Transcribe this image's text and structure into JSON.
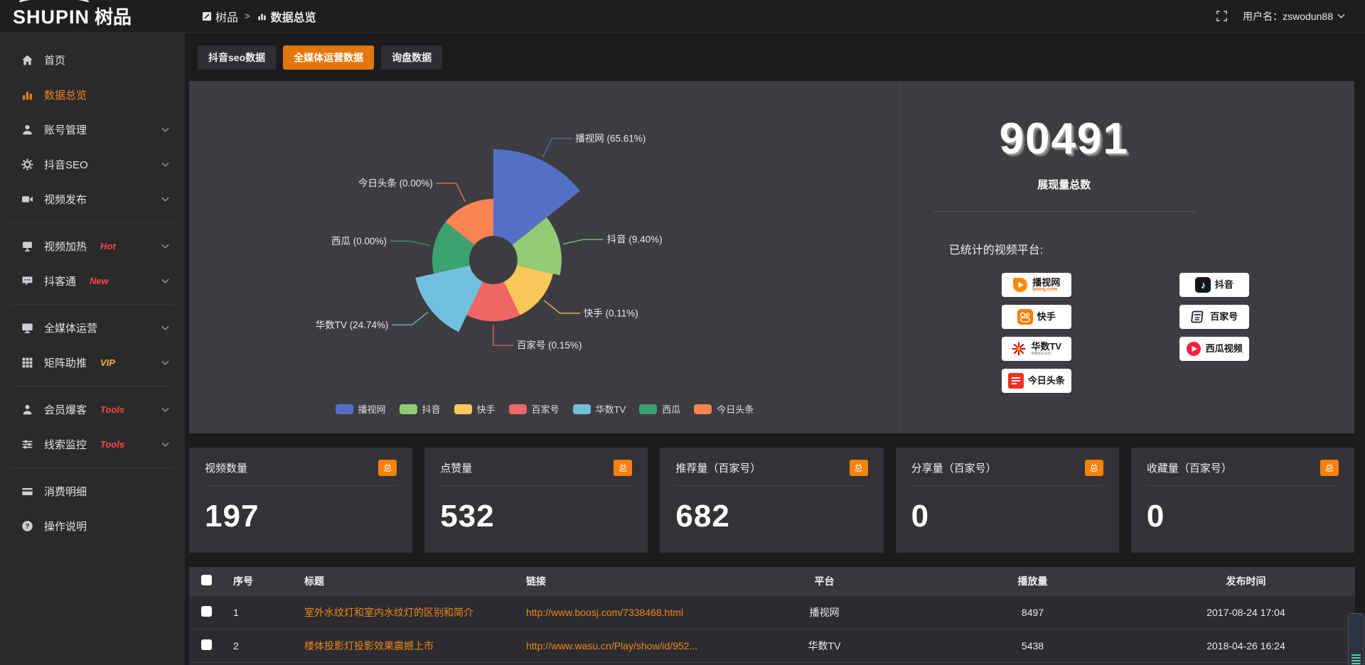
{
  "header": {
    "logo_primary": "SHUPIN",
    "logo_secondary": "树品",
    "breadcrumb": [
      {
        "label": "树品"
      },
      {
        "label": "数据总览"
      }
    ],
    "breadcrumb_separator": ">",
    "user_label": "用户名：zswodun88"
  },
  "sidebar": {
    "items": [
      {
        "label": "首页",
        "icon": "home-icon",
        "active": false,
        "chevron": false,
        "badge": "",
        "badge_color": "",
        "divider_after": false
      },
      {
        "label": "数据总览",
        "icon": "bar-chart-icon",
        "active": true,
        "chevron": false,
        "badge": "",
        "badge_color": "",
        "divider_after": false
      },
      {
        "label": "账号管理",
        "icon": "user-icon",
        "active": false,
        "chevron": true,
        "badge": "",
        "badge_color": "",
        "divider_after": false
      },
      {
        "label": "抖音SEO",
        "icon": "gear-icon",
        "active": false,
        "chevron": true,
        "badge": "",
        "badge_color": "",
        "divider_after": false
      },
      {
        "label": "视频发布",
        "icon": "video-camera-icon",
        "active": false,
        "chevron": true,
        "badge": "",
        "badge_color": "",
        "divider_after": true
      },
      {
        "label": "视频加热",
        "icon": "screen-icon",
        "active": false,
        "chevron": true,
        "badge": "Hot",
        "badge_color": "#ff4242",
        "divider_after": false
      },
      {
        "label": "抖客通",
        "icon": "chat-icon",
        "active": false,
        "chevron": true,
        "badge": "New",
        "badge_color": "#ff4242",
        "divider_after": true
      },
      {
        "label": "全媒体运营",
        "icon": "monitor-icon",
        "active": false,
        "chevron": true,
        "badge": "",
        "badge_color": "",
        "divider_after": false
      },
      {
        "label": "矩阵助推",
        "icon": "grid-icon",
        "active": false,
        "chevron": true,
        "badge": "VIP",
        "badge_color": "#f2b32c",
        "divider_after": true
      },
      {
        "label": "会员爆客",
        "icon": "person-icon",
        "active": false,
        "chevron": true,
        "badge": "Tools",
        "badge_color": "#ff4242",
        "divider_after": false
      },
      {
        "label": "线索监控",
        "icon": "sliders-icon",
        "active": false,
        "chevron": true,
        "badge": "Tools",
        "badge_color": "#ff4242",
        "divider_after": true
      },
      {
        "label": "消费明细",
        "icon": "card-icon",
        "active": false,
        "chevron": false,
        "badge": "",
        "badge_color": "",
        "divider_after": false
      },
      {
        "label": "操作说明",
        "icon": "question-icon",
        "active": false,
        "chevron": false,
        "badge": "",
        "badge_color": "",
        "divider_after": false
      }
    ]
  },
  "tabs": [
    {
      "label": "抖音seo数据",
      "active": false
    },
    {
      "label": "全媒体运营数据",
      "active": true
    },
    {
      "label": "询盘数据",
      "active": false
    }
  ],
  "chart_data": {
    "type": "pie",
    "style": "nightingale-rose",
    "categories": [
      "播视网",
      "抖音",
      "快手",
      "百家号",
      "华数TV",
      "西瓜",
      "今日头条"
    ],
    "values": [
      65.61,
      9.4,
      0.11,
      0.15,
      24.74,
      0.0,
      0.0
    ],
    "value_unit": "percent",
    "labels": [
      "播视网 (65.61%)",
      "抖音 (9.40%)",
      "快手 (0.11%)",
      "百家号 (0.15%)",
      "华数TV (24.74%)",
      "西瓜 (0.00%)",
      "今日头条 (0.00%)"
    ],
    "colors": [
      "#5470c6",
      "#91cc75",
      "#fac858",
      "#ee6666",
      "#73c0de",
      "#3ba272",
      "#fc8452"
    ],
    "legend_position": "bottom",
    "title": ""
  },
  "summary": {
    "total_value": "90491",
    "total_label": "展现量总数",
    "platforms_title": "已统计的视频平台:",
    "platforms_left": [
      {
        "name": "播视网",
        "sub": "boosj.com",
        "sub_color": "#f60",
        "logo": "boosj-logo"
      },
      {
        "name": "快手",
        "sub": "",
        "sub_color": "",
        "logo": "kuaishou-logo"
      },
      {
        "name": "华数TV",
        "sub": "wasu.cn",
        "sub_color": "#999",
        "logo": "wasu-logo"
      },
      {
        "name": "今日头条",
        "sub": "",
        "sub_color": "",
        "logo": "toutiao-logo"
      }
    ],
    "platforms_right": [
      {
        "name": "抖音",
        "sub": "",
        "sub_color": "",
        "logo": "douyin-logo"
      },
      {
        "name": "百家号",
        "sub": "",
        "sub_color": "",
        "logo": "baijiahao-logo"
      },
      {
        "name": "西瓜视频",
        "sub": "",
        "sub_color": "",
        "logo": "xigua-logo"
      }
    ]
  },
  "stat_cards": [
    {
      "title": "视频数量",
      "badge": "总",
      "value": "197"
    },
    {
      "title": "点赞量",
      "badge": "总",
      "value": "532"
    },
    {
      "title": "推荐量（百家号）",
      "badge": "总",
      "value": "682"
    },
    {
      "title": "分享量（百家号）",
      "badge": "总",
      "value": "0"
    },
    {
      "title": "收藏量（百家号）",
      "badge": "总",
      "value": "0"
    }
  ],
  "table": {
    "headers": [
      "序号",
      "标题",
      "链接",
      "平台",
      "播放量",
      "发布时间"
    ],
    "rows": [
      {
        "index": "1",
        "title": "室外水纹灯和室内水纹灯的区别和简介",
        "link": "http://www.boosj.com/7338468.html",
        "platform": "播视网",
        "plays": "8497",
        "published": "2017-08-24 17:04"
      },
      {
        "index": "2",
        "title": "楼体投影灯投影效果震撼上市",
        "link": "http://www.wasu.cn/Play/show/id/952...",
        "platform": "华数TV",
        "plays": "5438",
        "published": "2018-04-26 16:24"
      },
      {
        "index": "",
        "title": "",
        "link": "",
        "platform": "",
        "plays": "",
        "published": ""
      }
    ]
  }
}
